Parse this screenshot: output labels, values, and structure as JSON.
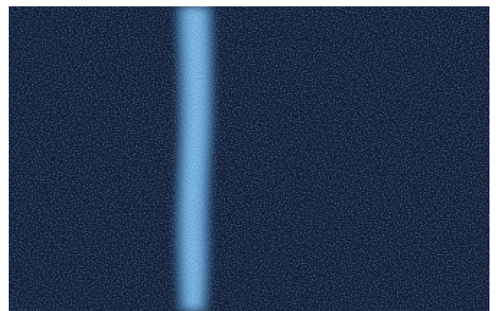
{
  "image": {
    "subject": "carpet-texture",
    "colors": {
      "base": "#101b33",
      "base_dark": "#070d1c",
      "fiber_light": "#2f4d7a",
      "stripe": "#5a9fd6",
      "stripe_highlight": "#8cc8f2",
      "frame": "#ffffff"
    }
  }
}
